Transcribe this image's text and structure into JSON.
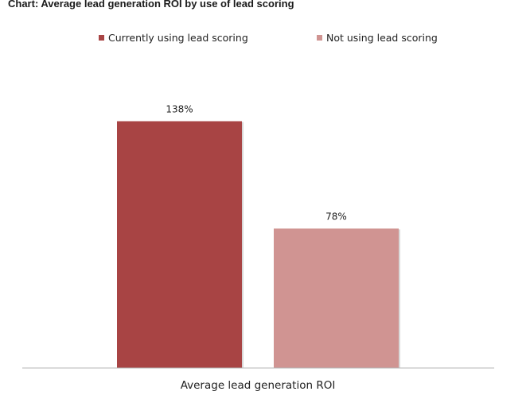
{
  "chart_data": {
    "type": "bar",
    "title": "Chart: Average lead generation ROI by use of lead scoring",
    "categories": [
      "Average lead generation ROI"
    ],
    "series": [
      {
        "name": "Currently using lead scoring",
        "values": [
          138
        ],
        "label": "138%",
        "color": "#A84444"
      },
      {
        "name": "Not using lead scoring",
        "values": [
          78
        ],
        "label": "78%",
        "color": "#D09492"
      }
    ],
    "xlabel": "",
    "ylabel": "",
    "ylim": [
      0,
      160
    ],
    "grid": false,
    "legend_position": "top"
  }
}
